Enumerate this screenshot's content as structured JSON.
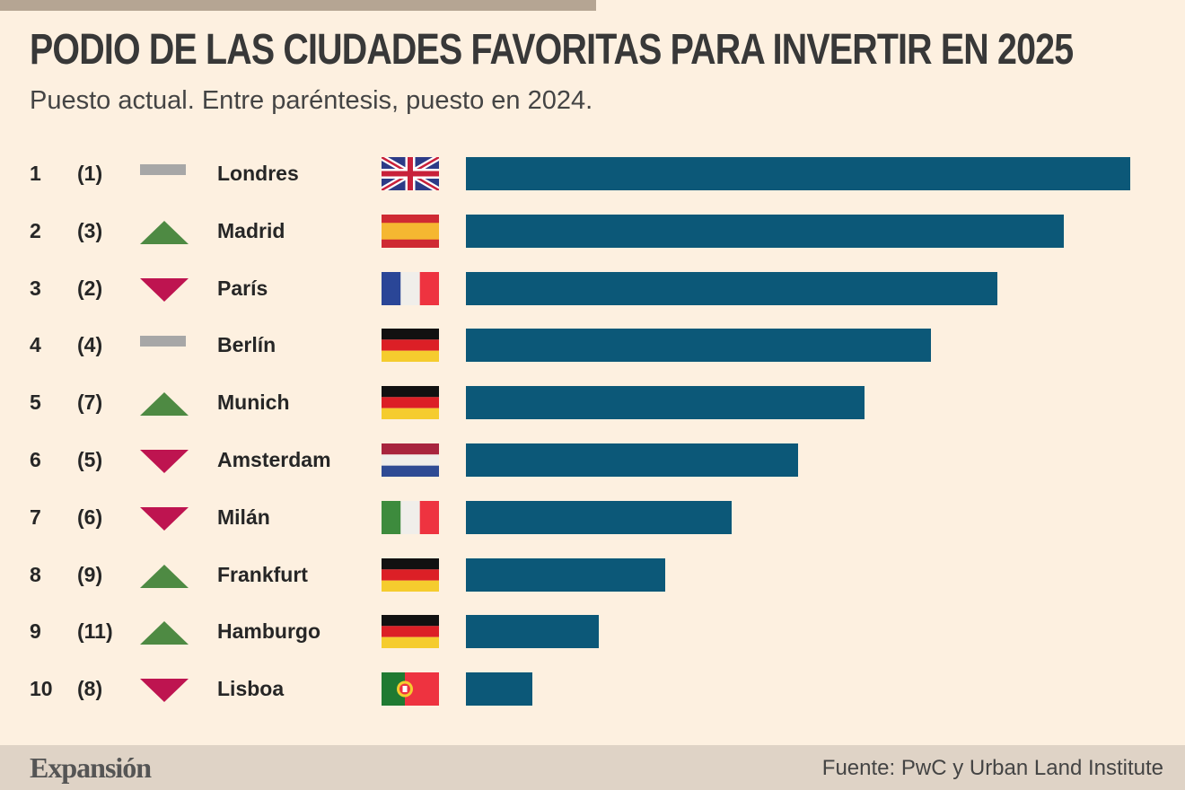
{
  "header": {
    "title": "PODIO DE LAS CIUDADES FAVORITAS PARA INVERTIR EN 2025",
    "subtitle": "Puesto actual. Entre paréntesis, puesto en 2024."
  },
  "chart_data": {
    "type": "bar",
    "orientation": "horizontal",
    "title": "PODIO DE LAS CIUDADES FAVORITAS PARA INVERTIR EN 2025",
    "subtitle": "Puesto actual. Entre paréntesis, puesto en 2024.",
    "rows": [
      {
        "rank": "1",
        "prev": "(1)",
        "trend": "same",
        "city": "Londres",
        "flag": "uk-flag-icon",
        "value": 10
      },
      {
        "rank": "2",
        "prev": "(3)",
        "trend": "up",
        "city": "Madrid",
        "flag": "spain-flag-icon",
        "value": 9
      },
      {
        "rank": "3",
        "prev": "(2)",
        "trend": "down",
        "city": "París",
        "flag": "france-flag-icon",
        "value": 8
      },
      {
        "rank": "4",
        "prev": "(4)",
        "trend": "same",
        "city": "Berlín",
        "flag": "germany-flag-icon",
        "value": 7
      },
      {
        "rank": "5",
        "prev": "(7)",
        "trend": "up",
        "city": "Munich",
        "flag": "germany-flag-icon",
        "value": 6
      },
      {
        "rank": "6",
        "prev": "(5)",
        "trend": "down",
        "city": "Amsterdam",
        "flag": "netherlands-flag-icon",
        "value": 5
      },
      {
        "rank": "7",
        "prev": "(6)",
        "trend": "down",
        "city": "Milán",
        "flag": "italy-flag-icon",
        "value": 4
      },
      {
        "rank": "8",
        "prev": "(9)",
        "trend": "up",
        "city": "Frankfurt",
        "flag": "germany-flag-icon",
        "value": 3
      },
      {
        "rank": "9",
        "prev": "(11)",
        "trend": "up",
        "city": "Hamburgo",
        "flag": "germany-flag-icon",
        "value": 2
      },
      {
        "rank": "10",
        "prev": "(8)",
        "trend": "down",
        "city": "Lisboa",
        "flag": "portugal-flag-icon",
        "value": 1
      }
    ],
    "colors": {
      "bar": "#0c5878",
      "up": "#4e8a43",
      "down": "#be1450",
      "same": "#a7a7a7"
    }
  },
  "footer": {
    "brand": "Expansión",
    "source": "Fuente: PwC y Urban Land Institute"
  }
}
